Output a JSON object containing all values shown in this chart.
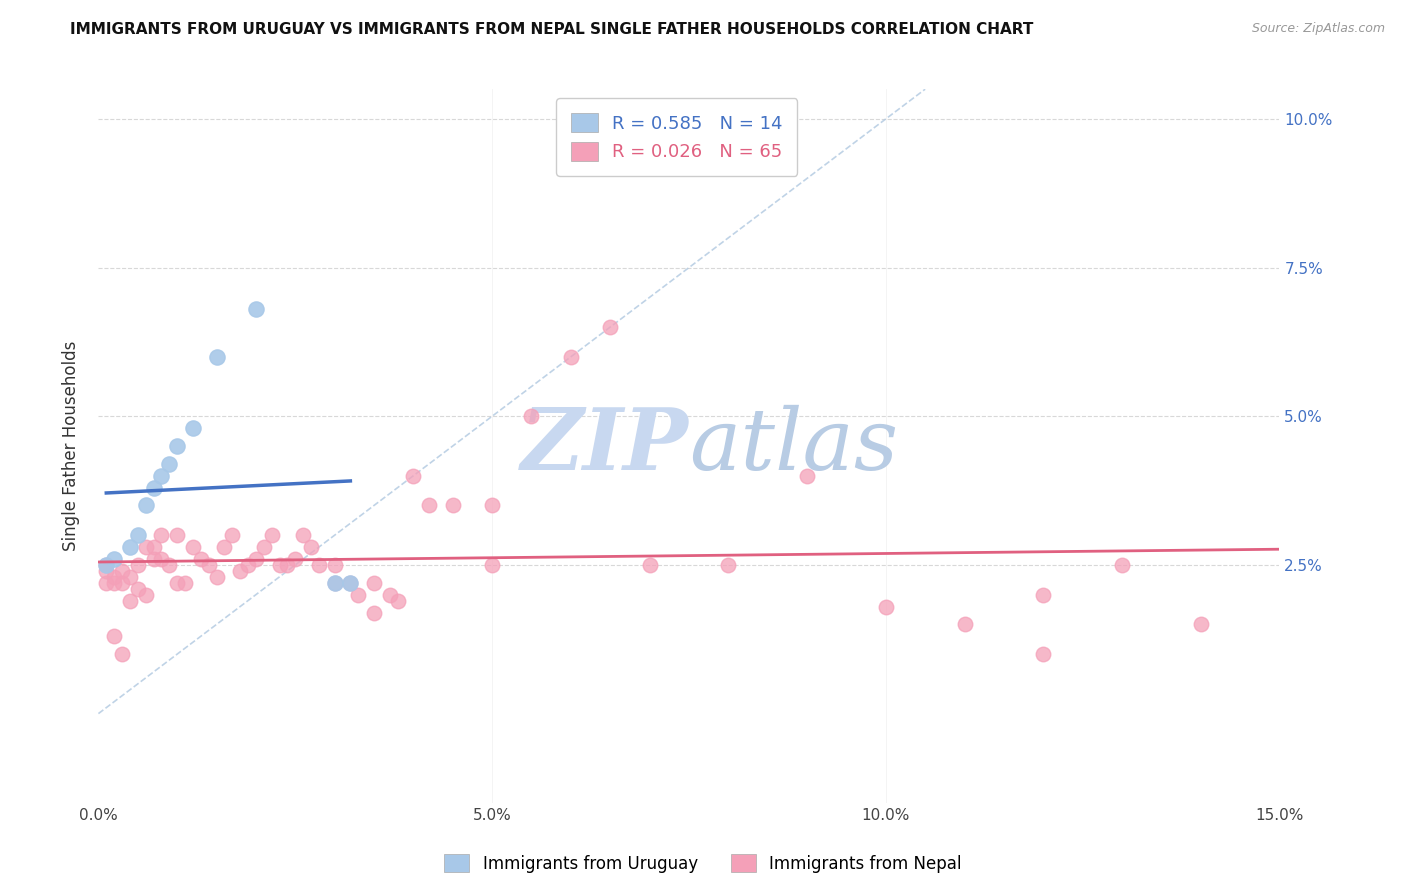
{
  "title": "IMMIGRANTS FROM URUGUAY VS IMMIGRANTS FROM NEPAL SINGLE FATHER HOUSEHOLDS CORRELATION CHART",
  "source": "Source: ZipAtlas.com",
  "ylabel": "Single Father Households",
  "xlim": [
    0.0,
    0.15
  ],
  "ylim": [
    -0.015,
    0.105
  ],
  "xticks": [
    0.0,
    0.05,
    0.1,
    0.15
  ],
  "xtick_labels": [
    "0.0%",
    "5.0%",
    "10.0%",
    "15.0%"
  ],
  "yticks": [
    0.025,
    0.05,
    0.075,
    0.1
  ],
  "right_ytick_labels": [
    "2.5%",
    "5.0%",
    "7.5%",
    "10.0%"
  ],
  "uruguay_R": 0.585,
  "uruguay_N": 14,
  "nepal_R": 0.026,
  "nepal_N": 65,
  "uruguay_color": "#a8c8e8",
  "nepal_color": "#f4a0b8",
  "uruguay_line_color": "#4472C4",
  "nepal_line_color": "#E06080",
  "diagonal_color": "#b0c8e0",
  "background_color": "#ffffff",
  "grid_color": "#d8d8d8",
  "legend_label_color_blue": "#4472C4",
  "legend_label_color_pink": "#E06080",
  "watermark_zip": "ZIP",
  "watermark_atlas": "atlas",
  "watermark_color": "#c8d8f0",
  "uruguay_x": [
    0.001,
    0.002,
    0.004,
    0.005,
    0.006,
    0.007,
    0.008,
    0.009,
    0.01,
    0.012,
    0.015,
    0.02,
    0.03,
    0.032
  ],
  "uruguay_y": [
    0.025,
    0.026,
    0.028,
    0.03,
    0.035,
    0.038,
    0.04,
    0.042,
    0.045,
    0.048,
    0.06,
    0.068,
    0.022,
    0.022
  ],
  "nepal_x": [
    0.001,
    0.001,
    0.001,
    0.002,
    0.002,
    0.002,
    0.003,
    0.003,
    0.003,
    0.004,
    0.004,
    0.005,
    0.005,
    0.006,
    0.006,
    0.007,
    0.007,
    0.008,
    0.008,
    0.009,
    0.01,
    0.01,
    0.011,
    0.012,
    0.013,
    0.014,
    0.015,
    0.016,
    0.017,
    0.018,
    0.019,
    0.02,
    0.021,
    0.022,
    0.023,
    0.024,
    0.025,
    0.026,
    0.027,
    0.028,
    0.03,
    0.03,
    0.032,
    0.033,
    0.035,
    0.035,
    0.037,
    0.038,
    0.04,
    0.042,
    0.045,
    0.05,
    0.055,
    0.06,
    0.065,
    0.07,
    0.08,
    0.09,
    0.1,
    0.11,
    0.12,
    0.13,
    0.14,
    0.05,
    0.12
  ],
  "nepal_y": [
    0.025,
    0.024,
    0.022,
    0.023,
    0.022,
    0.013,
    0.024,
    0.022,
    0.01,
    0.019,
    0.023,
    0.021,
    0.025,
    0.02,
    0.028,
    0.028,
    0.026,
    0.026,
    0.03,
    0.025,
    0.03,
    0.022,
    0.022,
    0.028,
    0.026,
    0.025,
    0.023,
    0.028,
    0.03,
    0.024,
    0.025,
    0.026,
    0.028,
    0.03,
    0.025,
    0.025,
    0.026,
    0.03,
    0.028,
    0.025,
    0.025,
    0.022,
    0.022,
    0.02,
    0.017,
    0.022,
    0.02,
    0.019,
    0.04,
    0.035,
    0.035,
    0.025,
    0.05,
    0.06,
    0.065,
    0.025,
    0.025,
    0.04,
    0.018,
    0.015,
    0.01,
    0.025,
    0.015,
    0.035,
    0.02
  ]
}
